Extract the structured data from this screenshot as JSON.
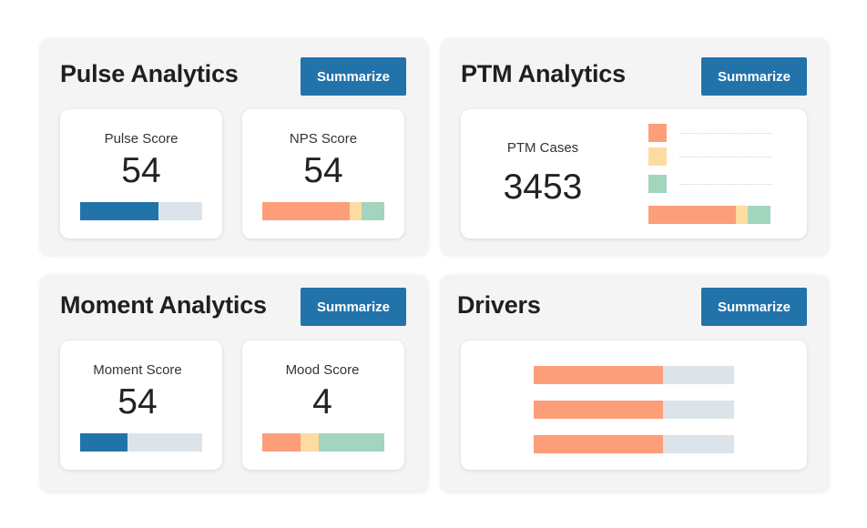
{
  "colors": {
    "button": "#2373ab",
    "blue": "#2373ab",
    "track": "#dce4ea",
    "orange": "#fc9e7a",
    "yellow": "#fcdca0",
    "green": "#a3d4bd"
  },
  "pulse": {
    "title": "Pulse Analytics",
    "summarize_label": "Summarize",
    "pulse_score": {
      "label": "Pulse Score",
      "value": "54",
      "fill_fraction": 0.64
    },
    "nps_score": {
      "label": "NPS Score",
      "value": "54",
      "segments": [
        0.72,
        0.09,
        0.19
      ]
    }
  },
  "ptm": {
    "title": "PTM Analytics",
    "summarize_label": "Summarize",
    "cases": {
      "label": "PTM Cases",
      "value": "3453"
    },
    "legend_icons": [
      "orange-swatch",
      "yellow-swatch",
      "green-swatch"
    ],
    "segments": [
      0.72,
      0.09,
      0.19
    ]
  },
  "moment": {
    "title": "Moment Analytics",
    "summarize_label": "Summarize",
    "moment_score": {
      "label": "Moment Score",
      "value": "54",
      "fill_fraction": 0.39
    },
    "mood_score": {
      "label": "Mood Score",
      "value": "4",
      "segments": [
        0.31,
        0.15,
        0.54
      ]
    }
  },
  "drivers": {
    "title": "Drivers",
    "summarize_label": "Summarize",
    "bars": [
      0.645,
      0.645,
      0.645
    ]
  }
}
